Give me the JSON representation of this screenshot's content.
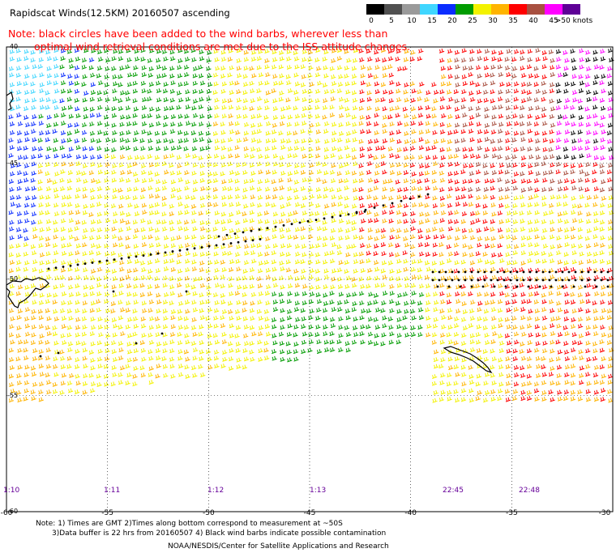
{
  "header": {
    "title": "Rapidscat Winds(12.5KM) 20160507 ascending",
    "note_line1": "Note: black circles have been added to the wind barbs, wherever less than",
    "note_line2": "optimal wind retrieval conditions are met due to the ISS attitude changes."
  },
  "legend": {
    "units": "knots",
    "labels": [
      "0",
      "5",
      "10",
      "15",
      "20",
      "25",
      "30",
      "35",
      "40",
      "45",
      ">50 knots"
    ],
    "colors": [
      "#000000",
      "#505050",
      "#9a9a9a",
      "#3fd6ff",
      "#0a2cff",
      "#009c00",
      "#f3f200",
      "#ffb400",
      "#ff0000",
      "#a85040",
      "#ff00ff",
      "#5e0096"
    ]
  },
  "axes": {
    "lon_labels": [
      "-60",
      "-55",
      "-50",
      "-45",
      "-40",
      "-35",
      "-30"
    ],
    "lat_labels": [
      "-40",
      "-45",
      "-50",
      "-55",
      "-60"
    ]
  },
  "pass_times": [
    "1:10",
    "1:11",
    "1:12",
    "1:13",
    "22:45",
    "22:48"
  ],
  "footer": {
    "note1": "Note: 1) Times are GMT 2)Times along bottom correspond to measurement at ~50S",
    "note2": "3)Data buffer is 22 hrs from 20160507 4) Black wind barbs indicate possible contamination",
    "credit": "NOAA/NESDIS/Center for Satellite Applications and Research"
  },
  "map_features": {
    "landmasses": [
      "Falkland Islands",
      "South Georgia"
    ],
    "grid": true
  }
}
